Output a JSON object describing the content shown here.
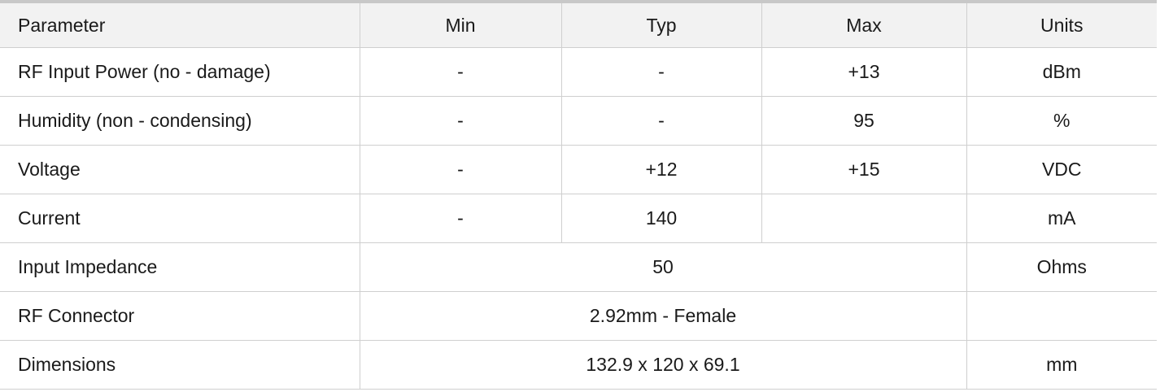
{
  "table": {
    "headers": [
      "Parameter",
      "Min",
      "Typ",
      "Max",
      "Units"
    ],
    "rows": [
      [
        "RF Input Power (no - damage)",
        "-",
        "-",
        "+13",
        "dBm"
      ],
      [
        "Humidity (non - condensing)",
        "-",
        "-",
        "95",
        "%"
      ],
      [
        "Voltage",
        "-",
        "+12",
        "+15",
        "VDC"
      ],
      [
        "Current",
        "-",
        "140",
        "",
        "mA"
      ],
      [
        "Input Impedance",
        "50",
        "Ohms"
      ],
      [
        "RF Connector",
        "2.92mm - Female",
        ""
      ],
      [
        "Dimensions",
        "132.9 x 120 x 69.1",
        "mm"
      ]
    ]
  }
}
